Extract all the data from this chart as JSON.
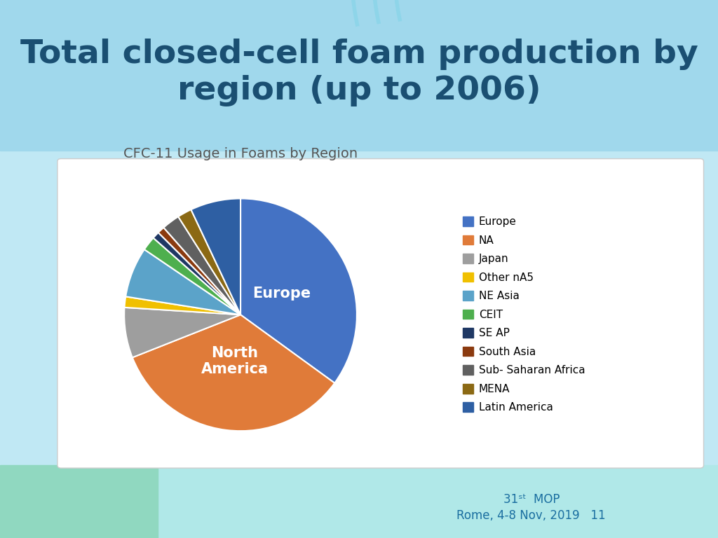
{
  "title": "Total closed-cell foam production by\nregion (up to 2006)",
  "chart_title": "CFC-11 Usage in Foams by Region",
  "labels": [
    "Europe",
    "NA",
    "Japan",
    "Other nA5",
    "NE Asia",
    "CEIT",
    "SE AP",
    "South Asia",
    "Sub- Saharan Africa",
    "MENA",
    "Latin America"
  ],
  "pie_labels": [
    "Europe",
    "North\nAmerica",
    "",
    "",
    "",
    "",
    "",
    "",
    "",
    "",
    ""
  ],
  "values": [
    35,
    34,
    7,
    1.5,
    7,
    2,
    1,
    1,
    2.5,
    2,
    7
  ],
  "colors": [
    "#4472C4",
    "#E07B39",
    "#9E9E9E",
    "#F0C000",
    "#5BA3C9",
    "#4EAF4E",
    "#1F3864",
    "#8B3A0F",
    "#606060",
    "#8B6914",
    "#2E5FA3"
  ],
  "background_color": "#ffffff",
  "slide_bg_top": "#a8dce8",
  "slide_bg_bottom": "#c8eeee",
  "title_color": "#1a4f72",
  "chart_title_color": "#555555",
  "title_fontsize": 34,
  "chart_title_fontsize": 14,
  "legend_fontsize": 11,
  "pie_label_fontsize": 15,
  "pie_label_color": "#ffffff",
  "startangle": 90,
  "wedge_linewidth": 1.5,
  "wedge_linecolor": "#ffffff",
  "footer_color": "#1a6ea0",
  "footer_fontsize": 12
}
